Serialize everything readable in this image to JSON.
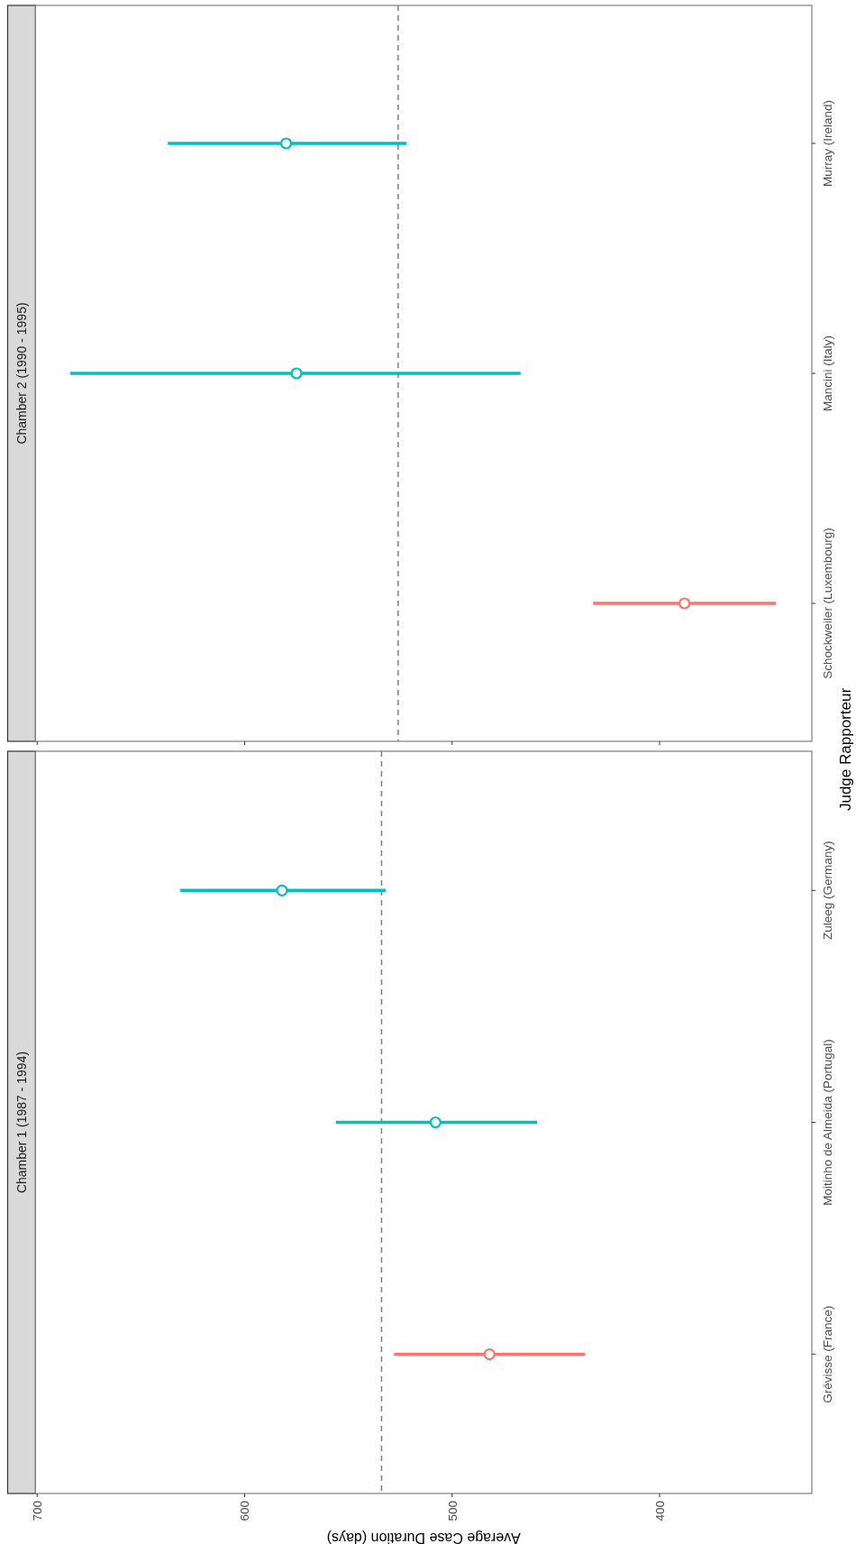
{
  "chart_data": [
    {
      "type": "scatter",
      "title": "Chamber 2 (1990 - 1995)",
      "orientation": "horizontal",
      "categories": [
        "Murray (Ireland)",
        "Mancini (Italy)",
        "Schockweiler (Luxembourg)"
      ],
      "series": [
        {
          "colors": [
            "#00bfc4",
            "#00bfc4",
            "#f8766d"
          ],
          "values": [
            580,
            575,
            388
          ],
          "errors": [
            [
              522,
              637
            ],
            [
              467,
              684
            ],
            [
              344,
              432
            ]
          ]
        }
      ],
      "xlim": [
        700.8,
        326.6
      ],
      "xticks": [
        700,
        600,
        500,
        400
      ],
      "marker": "circle",
      "tick_labels": "y",
      "ref_lines": [
        {
          "axis": "x",
          "value": 526,
          "color": "#7f7f7f",
          "line_style": "dashed"
        }
      ]
    },
    {
      "type": "scatter",
      "title": "Chamber 1 (1987 - 1994)",
      "orientation": "horizontal",
      "xlabel": "Average Case Duration (days)",
      "ylabel": "Judge Rapporteur",
      "categories": [
        "Zuleeg (Germany)",
        "Moitinho de Almeida (Portugal)",
        "Grévisse (France)"
      ],
      "series": [
        {
          "colors": [
            "#00bfc4",
            "#00bfc4",
            "#f8766d"
          ],
          "values": [
            582,
            508,
            482
          ],
          "errors": [
            [
              532,
              631
            ],
            [
              459,
              556
            ],
            [
              436,
              528
            ]
          ]
        }
      ],
      "xlim": [
        700.8,
        326.6
      ],
      "xticks": [
        700,
        600,
        500,
        400
      ],
      "marker": "circle",
      "ref_lines": [
        {
          "axis": "x",
          "value": 534,
          "color": "#7f7f7f",
          "line_style": "dashed"
        }
      ]
    }
  ]
}
